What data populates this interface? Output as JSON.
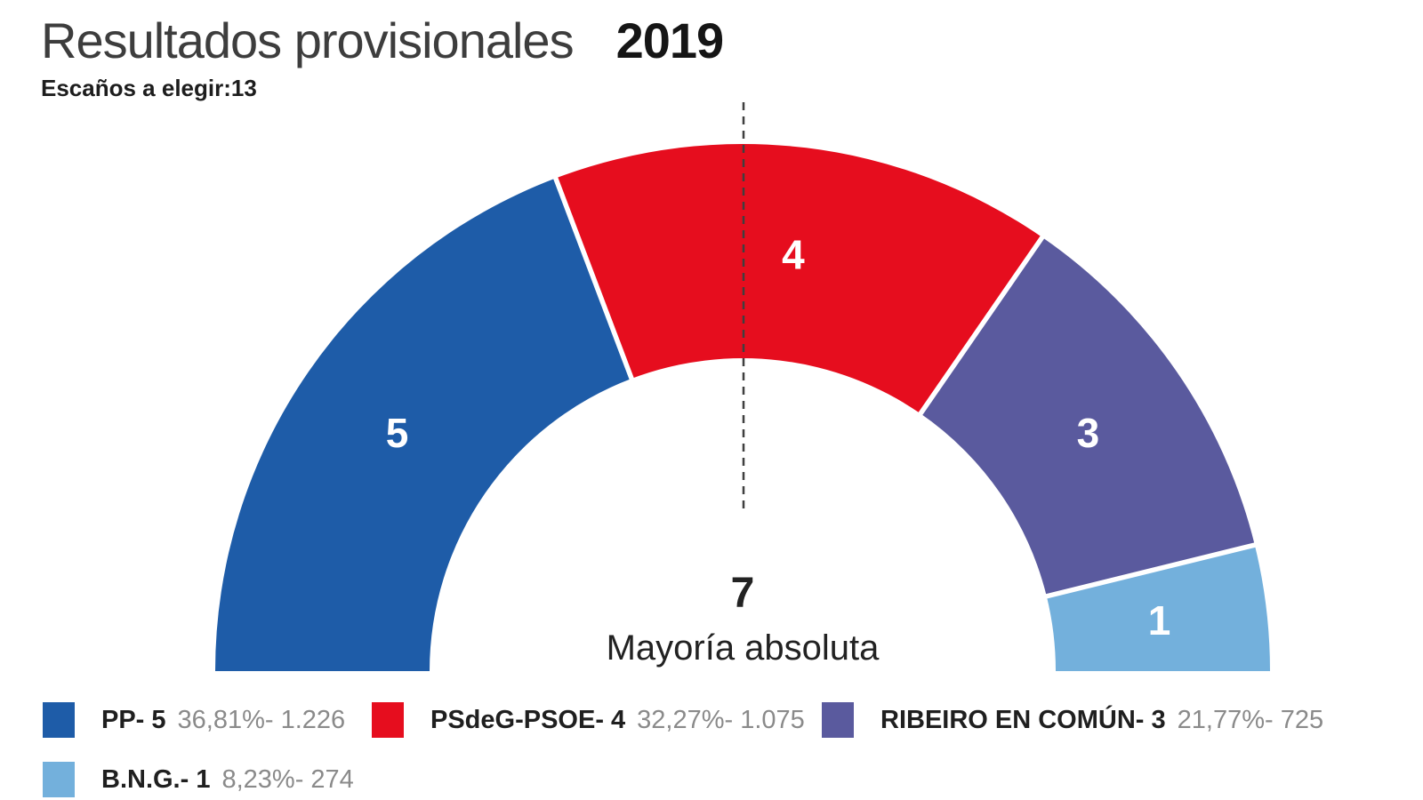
{
  "header": {
    "title": "Resultados provisionales",
    "year": "2019",
    "subtitle_label": "Escaños a elegir:",
    "subtitle_value": "13"
  },
  "chart_data": {
    "type": "pie",
    "variant": "half-donut-hemicycle",
    "title": "Resultados provisionales 2019",
    "seats_to_elect": 13,
    "majority": {
      "seats": "7",
      "label": "Mayoría absoluta"
    },
    "threshold_line": "dashed-vertical-at-majority",
    "categories": [
      "PP",
      "PSdeG-PSOE",
      "RIBEIRO EN COMÚN",
      "B.N.G."
    ],
    "values": [
      5,
      4,
      3,
      1
    ],
    "series": [
      {
        "id": "pp",
        "party": "PP",
        "seats": 5,
        "percent": "36,81%",
        "votes": "1.226",
        "color": "#1E5CA8"
      },
      {
        "id": "psdeg-psoe",
        "party": "PSdeG-PSOE",
        "seats": 4,
        "percent": "32,27%",
        "votes": "1.075",
        "color": "#E60D1E"
      },
      {
        "id": "ribeiro-en-comun",
        "party": "RIBEIRO EN COMÚN",
        "seats": 3,
        "percent": "21,77%",
        "votes": "725",
        "color": "#5A5A9E"
      },
      {
        "id": "bng",
        "party": "B.N.G.",
        "seats": 1,
        "percent": "8,23%",
        "votes": "274",
        "color": "#73B0DC"
      }
    ]
  },
  "legend": {
    "items": [
      {
        "id": "pp",
        "label": "PP- 5",
        "stats": "36,81%- 1.226",
        "color": "#1E5CA8"
      },
      {
        "id": "psdeg-psoe",
        "label": "PSdeG-PSOE- 4",
        "stats": "32,27%- 1.075",
        "color": "#E60D1E"
      },
      {
        "id": "ribeiro-en-comun",
        "label": "RIBEIRO EN COMÚN- 3",
        "stats": "21,77%- 725",
        "color": "#5A5A9E"
      },
      {
        "id": "bng",
        "label": "B.N.G.- 1",
        "stats": "8,23%- 274",
        "color": "#73B0DC"
      }
    ]
  }
}
